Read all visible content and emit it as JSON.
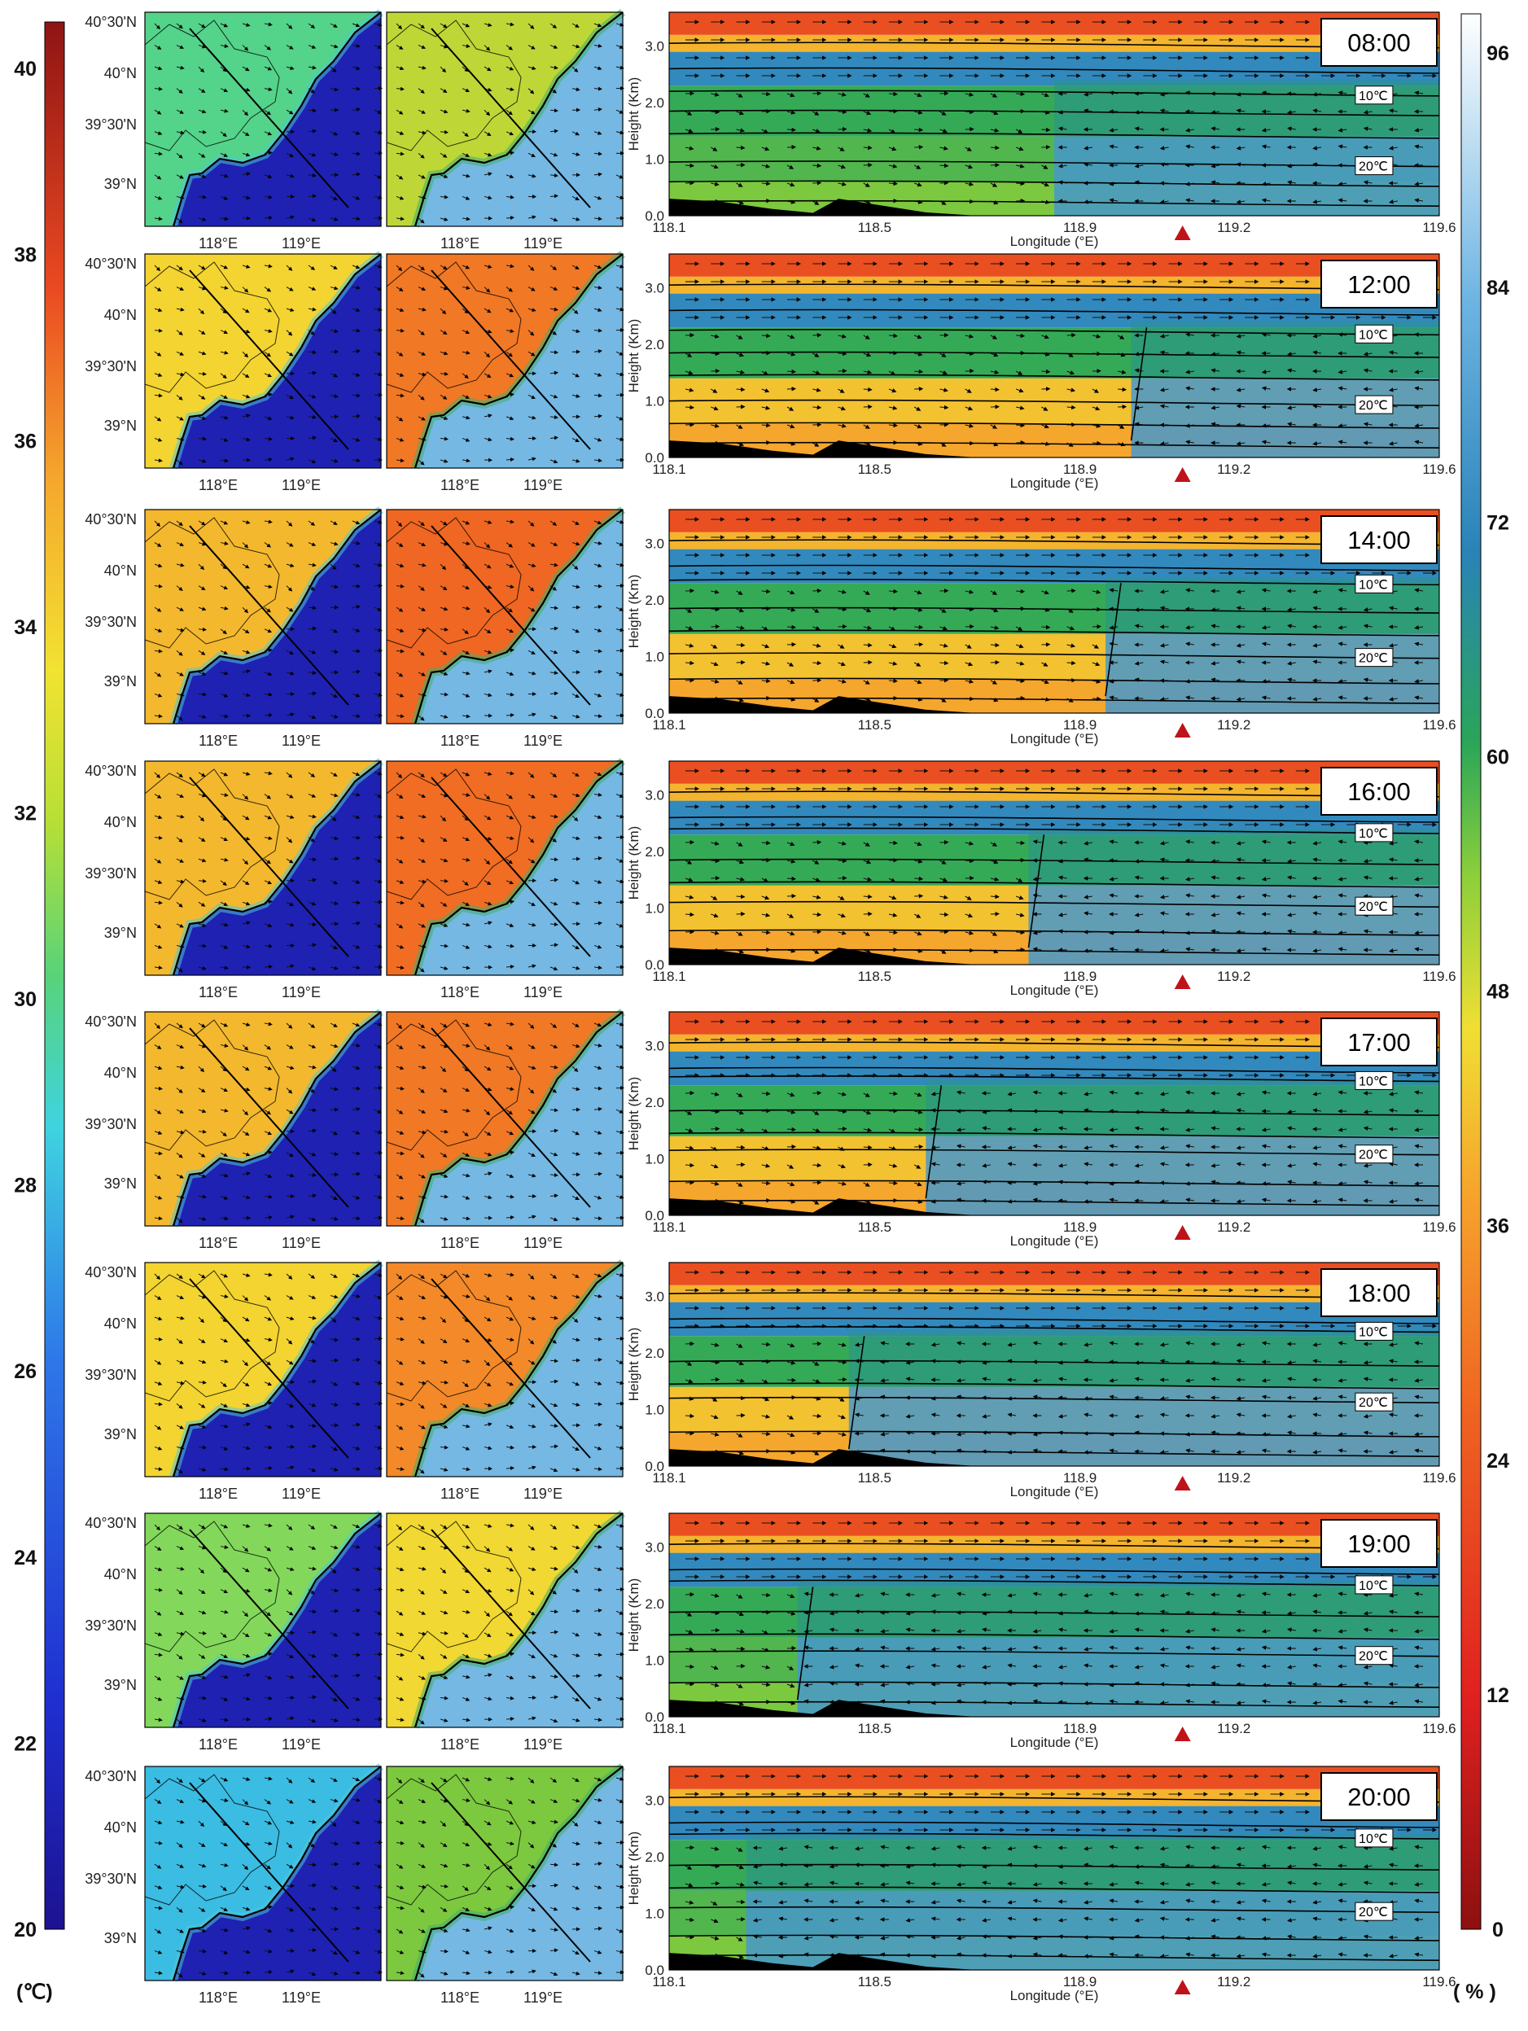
{
  "figure": {
    "temp_colorbar": {
      "ticks": [
        "20",
        "22",
        "24",
        "26",
        "28",
        "30",
        "32",
        "34",
        "36",
        "38",
        "40"
      ],
      "unit": "(℃)",
      "min": 20,
      "max": 40.5
    },
    "rh_colorbar": {
      "ticks": [
        "0",
        "12",
        "24",
        "36",
        "48",
        "60",
        "72",
        "84",
        "96"
      ],
      "unit": "( % )",
      "min": 0,
      "max": 98
    },
    "map_lat_labels": [
      "40°30'N",
      "40°N",
      "39°30'N",
      "39°N"
    ],
    "map_lon_labels": [
      "118°E",
      "119°E"
    ]
  },
  "chart_data": {
    "type": "heatmap",
    "description_fields": "temperature maps, relative-humidity maps and vertical cross-sections with wind vectors",
    "xlabel": "Longitude (°E)",
    "ylabel": "Height (Km)",
    "x_ticks": [
      "118.1",
      "118.5",
      "118.9",
      "119.2",
      "119.6"
    ],
    "y_ticks": [
      "0.0",
      "1.0",
      "2.0",
      "3.0"
    ],
    "xlim": [
      118.1,
      119.6
    ],
    "ylim": [
      0.0,
      3.6
    ],
    "isotherm_labels": [
      "10℃",
      "20℃"
    ],
    "marker_longitude": 119.1,
    "panels": [
      {
        "time": "08:00",
        "iso10": 2.2,
        "iso20": 0.95,
        "front_lon": null,
        "land_temp": 30,
        "land_rh": 50
      },
      {
        "time": "12:00",
        "iso10": 2.25,
        "iso20": 1.0,
        "front_lon": 119.0,
        "land_temp": 34,
        "land_rh": 30
      },
      {
        "time": "14:00",
        "iso10": 2.35,
        "iso20": 1.05,
        "front_lon": 118.95,
        "land_temp": 35,
        "land_rh": 27
      },
      {
        "time": "16:00",
        "iso10": 2.4,
        "iso20": 1.1,
        "front_lon": 118.8,
        "land_temp": 35,
        "land_rh": 28
      },
      {
        "time": "17:00",
        "iso10": 2.45,
        "iso20": 1.15,
        "front_lon": 118.6,
        "land_temp": 35,
        "land_rh": 30
      },
      {
        "time": "18:00",
        "iso10": 2.45,
        "iso20": 1.2,
        "front_lon": 118.45,
        "land_temp": 34,
        "land_rh": 33
      },
      {
        "time": "19:00",
        "iso10": 2.4,
        "iso20": 1.15,
        "front_lon": 118.35,
        "land_temp": 31,
        "land_rh": 45
      },
      {
        "time": "20:00",
        "iso10": 2.4,
        "iso20": 1.1,
        "front_lon": null,
        "land_temp": 28,
        "land_rh": 55
      }
    ]
  }
}
